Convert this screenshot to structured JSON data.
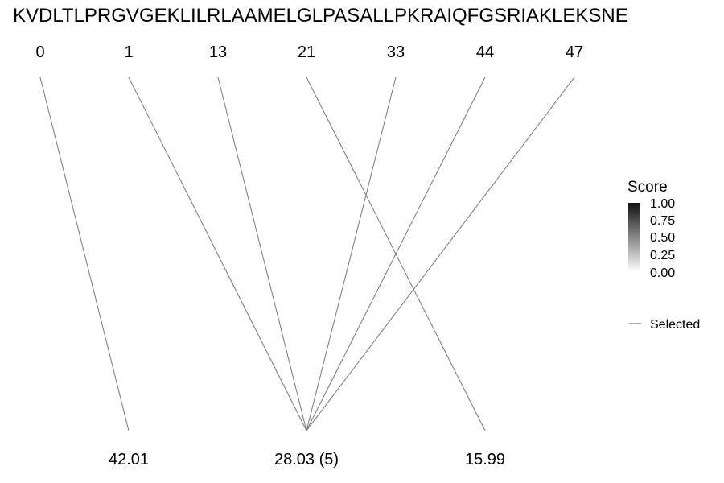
{
  "sequence": "KVDLTLPRGVGEKLILRLAAMELGLPASALLPKRAIQFGSRIAKLEKSNE",
  "positions": [
    "0",
    "1",
    "13",
    "21",
    "33",
    "44",
    "47"
  ],
  "targets": [
    "42.01",
    "28.03 (5)",
    "15.99"
  ],
  "connections": [
    {
      "from": 0,
      "to": 0
    },
    {
      "from": 1,
      "to": 1
    },
    {
      "from": 2,
      "to": 1
    },
    {
      "from": 4,
      "to": 1
    },
    {
      "from": 5,
      "to": 1
    },
    {
      "from": 6,
      "to": 1
    },
    {
      "from": 3,
      "to": 2
    }
  ],
  "line_color": "#777777",
  "legend": {
    "title": "Score",
    "ticks": [
      "1.00",
      "0.75",
      "0.50",
      "0.25",
      "0.00"
    ],
    "gradient_colors": [
      "#111111",
      "#ffffff"
    ],
    "selected_label": "Selected"
  }
}
